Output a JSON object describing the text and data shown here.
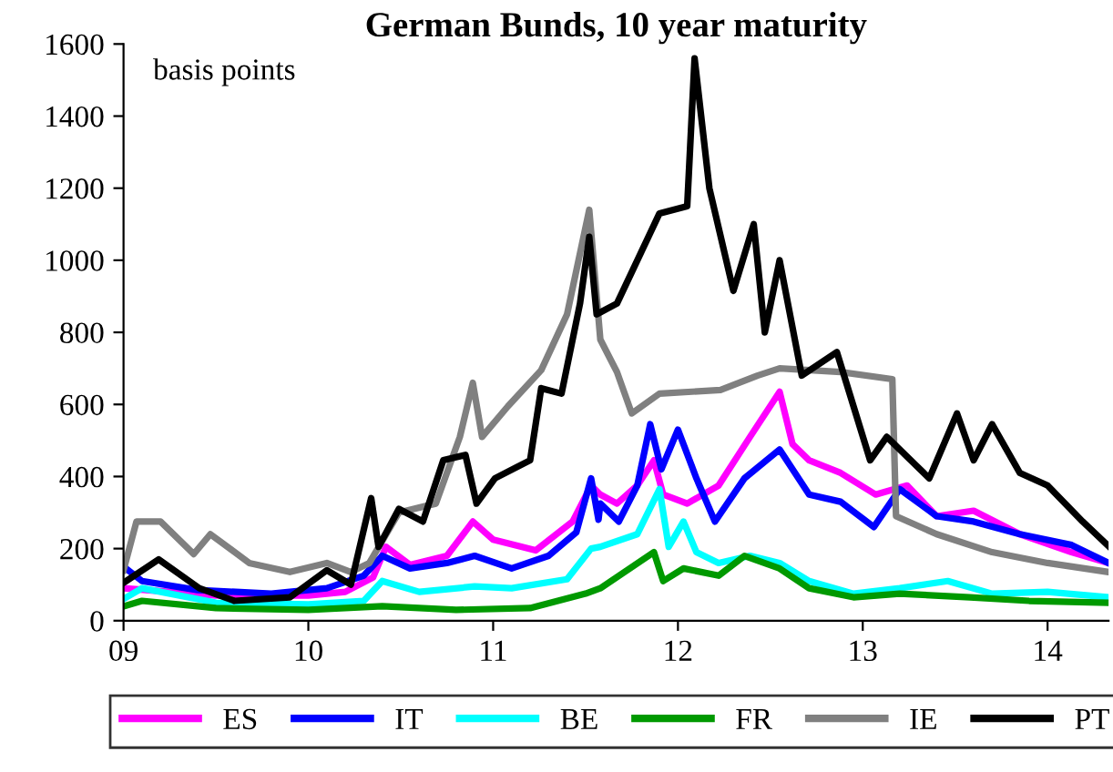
{
  "chart_data": {
    "type": "line",
    "title": "German Bunds, 10 year maturity",
    "annotations": [
      "basis points"
    ],
    "xlim": [
      9,
      14.33
    ],
    "xticks": [
      {
        "value": 9,
        "label": "09"
      },
      {
        "value": 10,
        "label": "10"
      },
      {
        "value": 11,
        "label": "11"
      },
      {
        "value": 12,
        "label": "12"
      },
      {
        "value": 13,
        "label": "13"
      },
      {
        "value": 14,
        "label": "14"
      }
    ],
    "ylim": [
      0,
      1600
    ],
    "yticks": [
      0,
      200,
      400,
      600,
      800,
      1000,
      1200,
      1400,
      1600
    ],
    "grid": false,
    "legend": "bottom",
    "marker": "none",
    "line_style": "solid",
    "series": [
      {
        "name": "ES",
        "color": "#ff00ff",
        "x": [
          9.0,
          9.5,
          10.0,
          10.2,
          10.35,
          10.42,
          10.55,
          10.75,
          10.89,
          11.0,
          11.23,
          11.43,
          11.53,
          11.58,
          11.67,
          11.78,
          11.87,
          11.92,
          12.05,
          12.22,
          12.39,
          12.55,
          12.62,
          12.71,
          12.88,
          13.07,
          13.24,
          13.4,
          13.6,
          13.85,
          14.13,
          14.33
        ],
        "values": [
          90,
          70,
          70,
          80,
          120,
          205,
          155,
          180,
          275,
          225,
          195,
          275,
          375,
          350,
          325,
          375,
          445,
          350,
          325,
          375,
          510,
          635,
          490,
          445,
          410,
          350,
          375,
          290,
          305,
          240,
          190,
          160
        ]
      },
      {
        "name": "IT",
        "color": "#0000ff",
        "x": [
          9.0,
          9.1,
          9.4,
          9.8,
          10.1,
          10.3,
          10.4,
          10.55,
          10.75,
          10.9,
          11.1,
          11.3,
          11.45,
          11.53,
          11.57,
          11.58,
          11.68,
          11.78,
          11.85,
          11.91,
          12.0,
          12.1,
          12.2,
          12.36,
          12.55,
          12.71,
          12.88,
          13.06,
          13.2,
          13.4,
          13.6,
          13.85,
          14.13,
          14.33
        ],
        "values": [
          150,
          110,
          85,
          75,
          90,
          125,
          180,
          145,
          160,
          180,
          145,
          180,
          245,
          395,
          280,
          325,
          275,
          375,
          545,
          420,
          530,
          395,
          275,
          395,
          475,
          350,
          330,
          260,
          365,
          290,
          275,
          240,
          210,
          160
        ]
      },
      {
        "name": "BE",
        "color": "#00ffff",
        "x": [
          9.0,
          9.1,
          9.5,
          10.0,
          10.3,
          10.4,
          10.6,
          10.9,
          11.1,
          11.4,
          11.53,
          11.58,
          11.78,
          11.9,
          11.95,
          12.03,
          12.1,
          12.22,
          12.39,
          12.55,
          12.71,
          12.95,
          13.2,
          13.46,
          13.7,
          14.0,
          14.33
        ],
        "values": [
          60,
          90,
          50,
          45,
          55,
          110,
          80,
          95,
          90,
          115,
          200,
          205,
          240,
          365,
          205,
          275,
          190,
          160,
          180,
          160,
          110,
          75,
          90,
          110,
          75,
          80,
          65
        ]
      },
      {
        "name": "FR",
        "color": "#009900",
        "x": [
          9.0,
          9.1,
          9.5,
          10.0,
          10.4,
          10.8,
          11.2,
          11.5,
          11.58,
          11.87,
          11.92,
          12.03,
          12.22,
          12.36,
          12.55,
          12.71,
          12.95,
          13.2,
          13.58,
          13.9,
          14.33
        ],
        "values": [
          40,
          55,
          35,
          30,
          40,
          30,
          35,
          75,
          90,
          190,
          110,
          145,
          125,
          180,
          145,
          90,
          65,
          75,
          65,
          55,
          50
        ]
      },
      {
        "name": "IE",
        "color": "#808080",
        "x": [
          9.0,
          9.07,
          9.2,
          9.38,
          9.47,
          9.68,
          9.9,
          10.1,
          10.23,
          10.33,
          10.49,
          10.69,
          10.82,
          10.89,
          10.94,
          11.08,
          11.26,
          11.4,
          11.52,
          11.58,
          11.67,
          11.75,
          11.9,
          12.23,
          12.43,
          12.55,
          12.88,
          13.16,
          13.18,
          13.4,
          13.7,
          14.0,
          14.33
        ],
        "values": [
          140,
          275,
          275,
          185,
          240,
          160,
          135,
          160,
          135,
          160,
          300,
          325,
          510,
          660,
          510,
          595,
          695,
          850,
          1140,
          780,
          690,
          575,
          630,
          640,
          680,
          700,
          690,
          670,
          290,
          240,
          190,
          160,
          135
        ]
      },
      {
        "name": "PT",
        "color": "#000000",
        "x": [
          9.0,
          9.19,
          9.41,
          9.6,
          9.9,
          10.1,
          10.23,
          10.34,
          10.38,
          10.49,
          10.62,
          10.73,
          10.85,
          10.91,
          11.01,
          11.2,
          11.26,
          11.37,
          11.47,
          11.52,
          11.56,
          11.67,
          11.9,
          12.05,
          12.09,
          12.17,
          12.3,
          12.41,
          12.47,
          12.55,
          12.67,
          12.86,
          13.04,
          13.13,
          13.36,
          13.51,
          13.6,
          13.7,
          13.85,
          14.0,
          14.19,
          14.33
        ],
        "values": [
          105,
          170,
          90,
          55,
          65,
          140,
          100,
          340,
          205,
          310,
          275,
          445,
          460,
          325,
          395,
          445,
          645,
          630,
          880,
          1065,
          850,
          880,
          1130,
          1150,
          1560,
          1200,
          915,
          1100,
          800,
          1000,
          680,
          745,
          445,
          510,
          395,
          575,
          445,
          545,
          410,
          375,
          275,
          207
        ]
      }
    ]
  }
}
